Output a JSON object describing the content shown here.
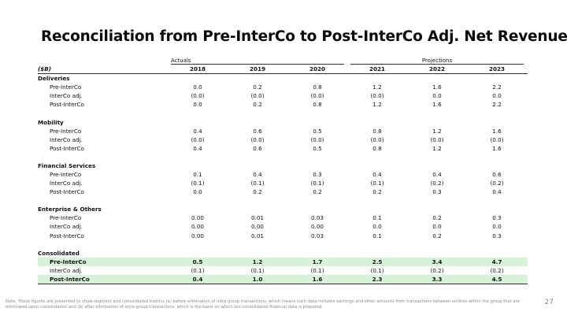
{
  "title": "Reconciliation from Pre-InterCo to Post-InterCo Adj. Net Revenue",
  "table": {
    "group_actuals": "Actuals",
    "group_projections": "Projections",
    "unit_label": "($B)",
    "years": [
      "2018",
      "2019",
      "2020",
      "2021",
      "2022",
      "2023"
    ],
    "sections": [
      {
        "name": "Deliveries",
        "rows": [
          {
            "label": "Pre-InterCo",
            "values": [
              "0.0",
              "0.2",
              "0.8",
              "1.2",
              "1.6",
              "2.2"
            ]
          },
          {
            "label": "InterCo adj.",
            "values": [
              "(0.0)",
              "(0.0)",
              "(0.0)",
              "(0.0)",
              "0.0",
              "0.0"
            ]
          },
          {
            "label": "Post-InterCo",
            "values": [
              "0.0",
              "0.2",
              "0.8",
              "1.2",
              "1.6",
              "2.2"
            ]
          }
        ]
      },
      {
        "name": "Mobility",
        "rows": [
          {
            "label": "Pre-InterCo",
            "values": [
              "0.4",
              "0.6",
              "0.5",
              "0.8",
              "1.2",
              "1.6"
            ]
          },
          {
            "label": "InterCo adj.",
            "values": [
              "(0.0)",
              "(0.0)",
              "(0.0)",
              "(0.0)",
              "(0.0)",
              "(0.0)"
            ]
          },
          {
            "label": "Post-InterCo",
            "values": [
              "0.4",
              "0.6",
              "0.5",
              "0.8",
              "1.2",
              "1.6"
            ]
          }
        ]
      },
      {
        "name": "Financial Services",
        "rows": [
          {
            "label": "Pre-InterCo",
            "values": [
              "0.1",
              "0.4",
              "0.3",
              "0.4",
              "0.4",
              "0.6"
            ]
          },
          {
            "label": "InterCo adj.",
            "values": [
              "(0.1)",
              "(0.1)",
              "(0.1)",
              "(0.1)",
              "(0.2)",
              "(0.2)"
            ]
          },
          {
            "label": "Post-InterCo",
            "values": [
              "0.0",
              "0.2",
              "0.2",
              "0.2",
              "0.3",
              "0.4"
            ]
          }
        ]
      },
      {
        "name": "Enterprise & Others",
        "rows": [
          {
            "label": "Pre-InterCo",
            "values": [
              "0.00",
              "0.01",
              "0.03",
              "0.1",
              "0.2",
              "0.3"
            ]
          },
          {
            "label": "InterCo adj.",
            "values": [
              "0.00",
              "0.00",
              "0.00",
              "0.0",
              "0.0",
              "0.0"
            ]
          },
          {
            "label": "Post-InterCo",
            "values": [
              "0.00",
              "0.01",
              "0.03",
              "0.1",
              "0.2",
              "0.3"
            ]
          }
        ]
      },
      {
        "name": "Consolidated",
        "rows": [
          {
            "label": "Pre-InterCo",
            "values": [
              "0.5",
              "1.2",
              "1.7",
              "2.5",
              "3.4",
              "4.7"
            ],
            "highlight": true
          },
          {
            "label": "InterCo adj.",
            "values": [
              "(0.1)",
              "(0.1)",
              "(0.1)",
              "(0.1)",
              "(0.2)",
              "(0.2)"
            ]
          },
          {
            "label": "Post-InterCo",
            "values": [
              "0.4",
              "1.0",
              "1.6",
              "2.3",
              "3.3",
              "4.5"
            ],
            "highlight": true
          }
        ]
      }
    ]
  },
  "note": "Note: These figures are presented to show segment and consolidated metrics (a) before elimination of intra-group transactions, which means such data includes earnings and other amounts from transactions between entities within the group that are eliminated upon consolidation and (b) after elimination of intra-group transactions, which is the basis on which our consolidated financial data is prepared.",
  "page_number": "27",
  "colors": {
    "highlight": "#d6f3d8",
    "note_text": "#8a8a8a"
  }
}
